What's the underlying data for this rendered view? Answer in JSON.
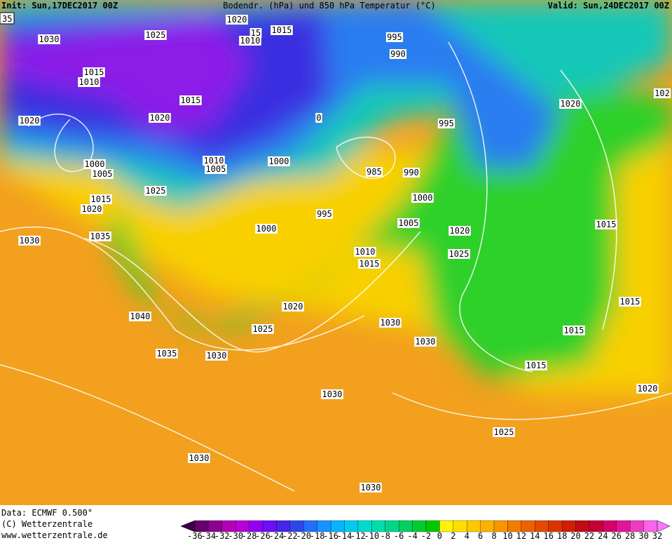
{
  "header": {
    "init": "Init: Sun,17DEC2017 00Z",
    "title": "Bodendr. (hPa) und 850 hPa Temperatur (°C)",
    "valid": "Valid: Sun,24DEC2017 00Z",
    "corner": "35"
  },
  "isobar_labels": [
    "1030",
    "1025",
    "1020",
    "15",
    "1010",
    "1015",
    "995",
    "990",
    "1015",
    "1010",
    "1015",
    "1020",
    "1020",
    "0",
    "995",
    "1020",
    "102",
    "1010",
    "1005",
    "1000",
    "1000",
    "1005",
    "985",
    "990",
    "1025",
    "1000",
    "1015",
    "1020",
    "995",
    "1005",
    "1015",
    "1000",
    "1020",
    "1030",
    "1035",
    "1025",
    "1010",
    "1015",
    "1015",
    "1020",
    "1040",
    "1030",
    "1025",
    "1015",
    "1030",
    "1035",
    "1030",
    "1015",
    "1030",
    "1020",
    "1025",
    "1030",
    "1030"
  ],
  "footer": {
    "data": "Data: ECMWF   0.500°",
    "copyright": "(C) Wetterzentrale",
    "url": "www.wetterzentrale.de"
  },
  "colorbar": {
    "ticks": [
      -36,
      -34,
      -32,
      -30,
      -28,
      -26,
      -24,
      -22,
      -20,
      -18,
      -16,
      -14,
      -12,
      -10,
      -8,
      -6,
      -4,
      -2,
      0,
      2,
      4,
      6,
      8,
      10,
      12,
      14,
      16,
      18,
      20,
      22,
      24,
      26,
      28,
      30,
      32
    ]
  }
}
